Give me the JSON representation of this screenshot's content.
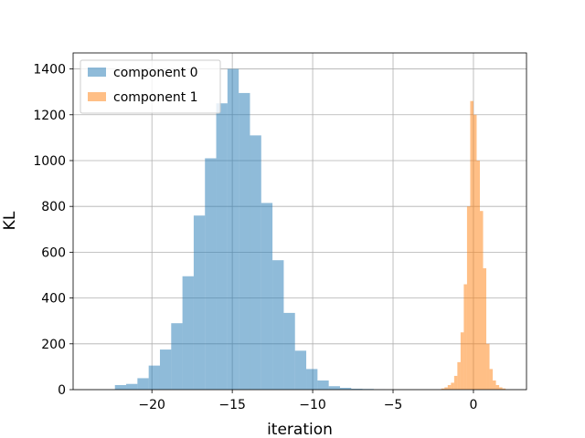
{
  "chart_data": {
    "type": "bar",
    "subtype": "histogram",
    "xlabel": "iteration",
    "ylabel": "KL",
    "xlim": [
      -24.9,
      3.3
    ],
    "ylim": [
      0,
      1470
    ],
    "xticks": [
      -20,
      -15,
      -10,
      -5,
      0
    ],
    "xtick_labels": [
      "−20",
      "−15",
      "−10",
      "−5",
      "0"
    ],
    "yticks": [
      0,
      200,
      400,
      600,
      800,
      1000,
      1200,
      1400
    ],
    "ytick_labels": [
      "0",
      "200",
      "400",
      "600",
      "800",
      "1000",
      "1200",
      "1400"
    ],
    "grid": true,
    "legend_position": "top-left",
    "series": [
      {
        "name": "component 0",
        "color": "#1f77b4",
        "alpha": 0.5,
        "bins": [
          {
            "x0": -22.3,
            "x1": -21.6,
            "count": 20
          },
          {
            "x0": -21.6,
            "x1": -20.9,
            "count": 25
          },
          {
            "x0": -20.9,
            "x1": -20.2,
            "count": 50
          },
          {
            "x0": -20.2,
            "x1": -19.5,
            "count": 105
          },
          {
            "x0": -19.5,
            "x1": -18.8,
            "count": 175
          },
          {
            "x0": -18.8,
            "x1": -18.1,
            "count": 290
          },
          {
            "x0": -18.1,
            "x1": -17.4,
            "count": 495
          },
          {
            "x0": -17.4,
            "x1": -16.7,
            "count": 760
          },
          {
            "x0": -16.7,
            "x1": -16.0,
            "count": 1010
          },
          {
            "x0": -16.0,
            "x1": -15.3,
            "count": 1250
          },
          {
            "x0": -15.3,
            "x1": -14.6,
            "count": 1400
          },
          {
            "x0": -14.6,
            "x1": -13.9,
            "count": 1295
          },
          {
            "x0": -13.9,
            "x1": -13.2,
            "count": 1110
          },
          {
            "x0": -13.2,
            "x1": -12.5,
            "count": 815
          },
          {
            "x0": -12.5,
            "x1": -11.8,
            "count": 565
          },
          {
            "x0": -11.8,
            "x1": -11.1,
            "count": 335
          },
          {
            "x0": -11.1,
            "x1": -10.4,
            "count": 170
          },
          {
            "x0": -10.4,
            "x1": -9.7,
            "count": 90
          },
          {
            "x0": -9.7,
            "x1": -9.0,
            "count": 40
          },
          {
            "x0": -9.0,
            "x1": -8.3,
            "count": 15
          },
          {
            "x0": -8.3,
            "x1": -7.6,
            "count": 8
          },
          {
            "x0": -7.6,
            "x1": -6.9,
            "count": 4
          },
          {
            "x0": -6.9,
            "x1": -6.2,
            "count": 3
          },
          {
            "x0": -6.2,
            "x1": -5.5,
            "count": 1
          }
        ]
      },
      {
        "name": "component 1",
        "color": "#ff7f0e",
        "alpha": 0.5,
        "bins": [
          {
            "x0": -2.0,
            "x1": -1.8,
            "count": 5
          },
          {
            "x0": -1.8,
            "x1": -1.6,
            "count": 10
          },
          {
            "x0": -1.6,
            "x1": -1.4,
            "count": 20
          },
          {
            "x0": -1.4,
            "x1": -1.2,
            "count": 30
          },
          {
            "x0": -1.2,
            "x1": -1.0,
            "count": 60
          },
          {
            "x0": -1.0,
            "x1": -0.8,
            "count": 120
          },
          {
            "x0": -0.8,
            "x1": -0.6,
            "count": 250
          },
          {
            "x0": -0.6,
            "x1": -0.4,
            "count": 460
          },
          {
            "x0": -0.4,
            "x1": -0.2,
            "count": 800
          },
          {
            "x0": -0.2,
            "x1": 0.0,
            "count": 1260
          },
          {
            "x0": 0.0,
            "x1": 0.2,
            "count": 1200
          },
          {
            "x0": 0.2,
            "x1": 0.4,
            "count": 1000
          },
          {
            "x0": 0.4,
            "x1": 0.6,
            "count": 780
          },
          {
            "x0": 0.6,
            "x1": 0.8,
            "count": 530
          },
          {
            "x0": 0.8,
            "x1": 1.0,
            "count": 200
          },
          {
            "x0": 1.0,
            "x1": 1.2,
            "count": 90
          },
          {
            "x0": 1.2,
            "x1": 1.4,
            "count": 40
          },
          {
            "x0": 1.4,
            "x1": 1.6,
            "count": 20
          },
          {
            "x0": 1.6,
            "x1": 1.8,
            "count": 10
          },
          {
            "x0": 1.8,
            "x1": 2.0,
            "count": 5
          }
        ]
      }
    ]
  }
}
